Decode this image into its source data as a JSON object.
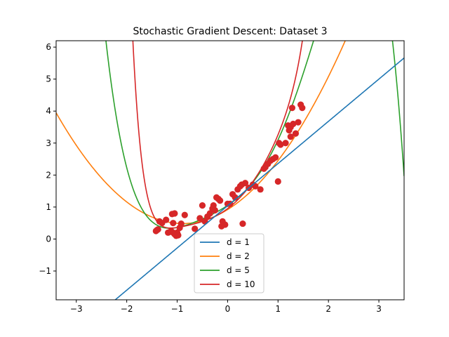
{
  "chart_data": {
    "type": "scatter",
    "title": "Stochastic Gradient Descent: Dataset 3",
    "xlabel": "",
    "ylabel": "",
    "xlim": [
      -3.4,
      3.5
    ],
    "ylim": [
      -1.9,
      6.2
    ],
    "xticks": [
      -3,
      -2,
      -1,
      0,
      1,
      2,
      3
    ],
    "yticks": [
      -1,
      0,
      1,
      2,
      3,
      4,
      5,
      6
    ],
    "xtick_labels": [
      "−3",
      "−2",
      "−1",
      "0",
      "1",
      "2",
      "3"
    ],
    "ytick_labels": [
      "−1",
      "0",
      "1",
      "2",
      "3",
      "4",
      "5",
      "6"
    ],
    "grid": false,
    "legend_position": "lower-center",
    "points": {
      "color": "#d62728",
      "x": [
        -1.42,
        -1.38,
        -1.4,
        -1.35,
        -1.22,
        -1.18,
        -1.12,
        -1.08,
        -1.05,
        -1.02,
        -1.0,
        -0.98,
        -0.95,
        -1.1,
        -1.05,
        -0.92,
        -0.85,
        -0.65,
        -0.55,
        -0.5,
        -0.45,
        -0.4,
        -0.35,
        -0.3,
        -0.28,
        -0.25,
        -0.22,
        -0.18,
        -0.15,
        -0.1,
        -0.05,
        0.0,
        0.05,
        0.1,
        0.15,
        0.2,
        0.25,
        0.28,
        0.35,
        0.42,
        0.5,
        0.55,
        0.65,
        0.72,
        0.75,
        0.8,
        0.85,
        0.9,
        0.95,
        1.0,
        1.02,
        1.05,
        1.15,
        1.2,
        1.22,
        1.25,
        1.28,
        1.3,
        1.35,
        1.4,
        1.45,
        1.48,
        -1.3,
        -0.12,
        0.3,
        -1.08,
        1.25
      ],
      "y": [
        0.25,
        0.3,
        0.28,
        0.55,
        0.6,
        0.2,
        0.25,
        0.5,
        0.15,
        0.1,
        0.2,
        0.12,
        0.35,
        0.78,
        0.8,
        0.48,
        0.75,
        0.32,
        0.65,
        1.05,
        0.55,
        0.7,
        0.8,
        0.95,
        1.05,
        0.9,
        1.3,
        1.25,
        1.2,
        0.55,
        0.45,
        1.1,
        1.1,
        1.4,
        1.3,
        1.55,
        1.65,
        1.7,
        1.75,
        1.6,
        1.7,
        1.65,
        1.55,
        2.2,
        2.25,
        2.35,
        2.45,
        2.5,
        2.55,
        1.8,
        3.0,
        2.95,
        3.0,
        3.55,
        3.4,
        3.5,
        4.1,
        3.6,
        3.3,
        3.65,
        4.2,
        4.1,
        0.5,
        0.4,
        0.48,
        0.2,
        3.2
      ]
    },
    "series": [
      {
        "name": "d = 1",
        "color": "#1f77b4",
        "coefficients": [
          1.04,
          1.32
        ]
      },
      {
        "name": "d = 2",
        "color": "#ff7f0e",
        "coefficients": [
          0.92,
          0.98,
          0.55
        ]
      },
      {
        "name": "d = 5",
        "color": "#2ca02c",
        "coefficients": [
          1.05,
          1.05,
          0.58,
          0.4,
          0.1,
          -0.08
        ]
      },
      {
        "name": "d = 10",
        "color": "#d62728",
        "coefficients": [
          0.95,
          1.18,
          0.9,
          0.25,
          -0.1,
          0.02,
          0.05,
          0.0,
          0.0,
          0.0,
          0.01
        ]
      }
    ]
  }
}
